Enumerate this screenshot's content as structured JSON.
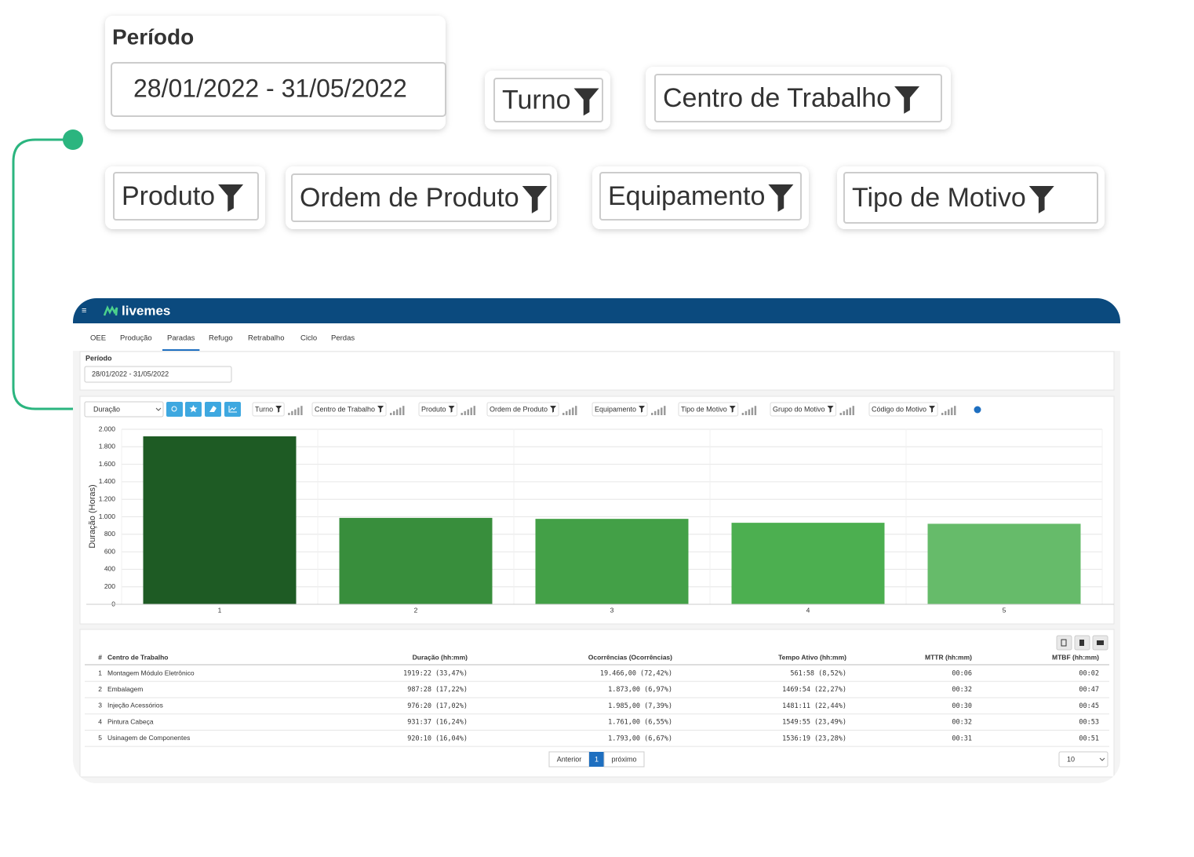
{
  "zoom_filters": {
    "period_label": "Período",
    "period_value": "28/01/2022 - 31/05/2022",
    "filters": [
      "Turno",
      "Centro de Trabalho",
      "Produto",
      "Ordem de Produto",
      "Equipamento",
      "Tipo de Motivo"
    ]
  },
  "app": {
    "logo": "livemes",
    "tabs": [
      "OEE",
      "Produção",
      "Paradas",
      "Refugo",
      "Retrabalho",
      "Ciclo",
      "Perdas"
    ],
    "period_label": "Período",
    "period_value": "28/01/2022 - 31/05/2022",
    "metric_select": "Duração",
    "toolbar_filters": [
      "Turno",
      "Centro de Trabalho",
      "Produto",
      "Ordem de Produto",
      "Equipamento",
      "Tipo de Motivo",
      "Grupo do Motivo",
      "Código do Motivo"
    ]
  },
  "chart_data": {
    "type": "bar",
    "ylabel": "Duração (Horas)",
    "categories": [
      "1",
      "2",
      "3",
      "4",
      "5"
    ],
    "values": [
      1919.4,
      987.5,
      976.3,
      931.6,
      920.2
    ],
    "colors": [
      "#1e5b24",
      "#388e3c",
      "#43a047",
      "#4caf50",
      "#66bb6a"
    ],
    "ylim": [
      0,
      2000
    ],
    "yticks": [
      0,
      200,
      400,
      600,
      800,
      {
        "value": 1000,
        "label": "1.000"
      },
      {
        "value": 1200,
        "label": "1.200"
      },
      {
        "value": 1400,
        "label": "1.400"
      },
      {
        "value": 1600,
        "label": "1.600"
      },
      {
        "value": 1800,
        "label": "1.800"
      },
      {
        "value": 2000,
        "label": "2.000"
      }
    ],
    "grid": true
  },
  "table": {
    "columns": [
      "#",
      "Centro de Trabalho",
      "Duração (hh:mm)",
      "Ocorrências (Ocorrências)",
      "Tempo Ativo (hh:mm)",
      "MTTR (hh:mm)",
      "MTBF (hh:mm)"
    ],
    "rows": [
      [
        "1",
        "Montagem Módulo Eletrônico",
        "1919:22 (33,47%)",
        "19.466,00 (72,42%)",
        "561:58 (8,52%)",
        "00:06",
        "00:02"
      ],
      [
        "2",
        "Embalagem",
        "987:28 (17,22%)",
        "1.873,00 (6,97%)",
        "1469:54 (22,27%)",
        "00:32",
        "00:47"
      ],
      [
        "3",
        "Injeção Acessórios",
        "976:20 (17,02%)",
        "1.985,00 (7,39%)",
        "1481:11 (22,44%)",
        "00:30",
        "00:45"
      ],
      [
        "4",
        "Pintura Cabeça",
        "931:37 (16,24%)",
        "1.761,00 (6,55%)",
        "1549:55 (23,49%)",
        "00:32",
        "00:53"
      ],
      [
        "5",
        "Usinagem de Componentes",
        "920:10 (16,04%)",
        "1.793,00 (6,67%)",
        "1536:19 (23,28%)",
        "00:31",
        "00:51"
      ]
    ]
  },
  "pagination": {
    "previous": "Anterior",
    "page": "1",
    "next": "próximo",
    "page_size": "10"
  }
}
